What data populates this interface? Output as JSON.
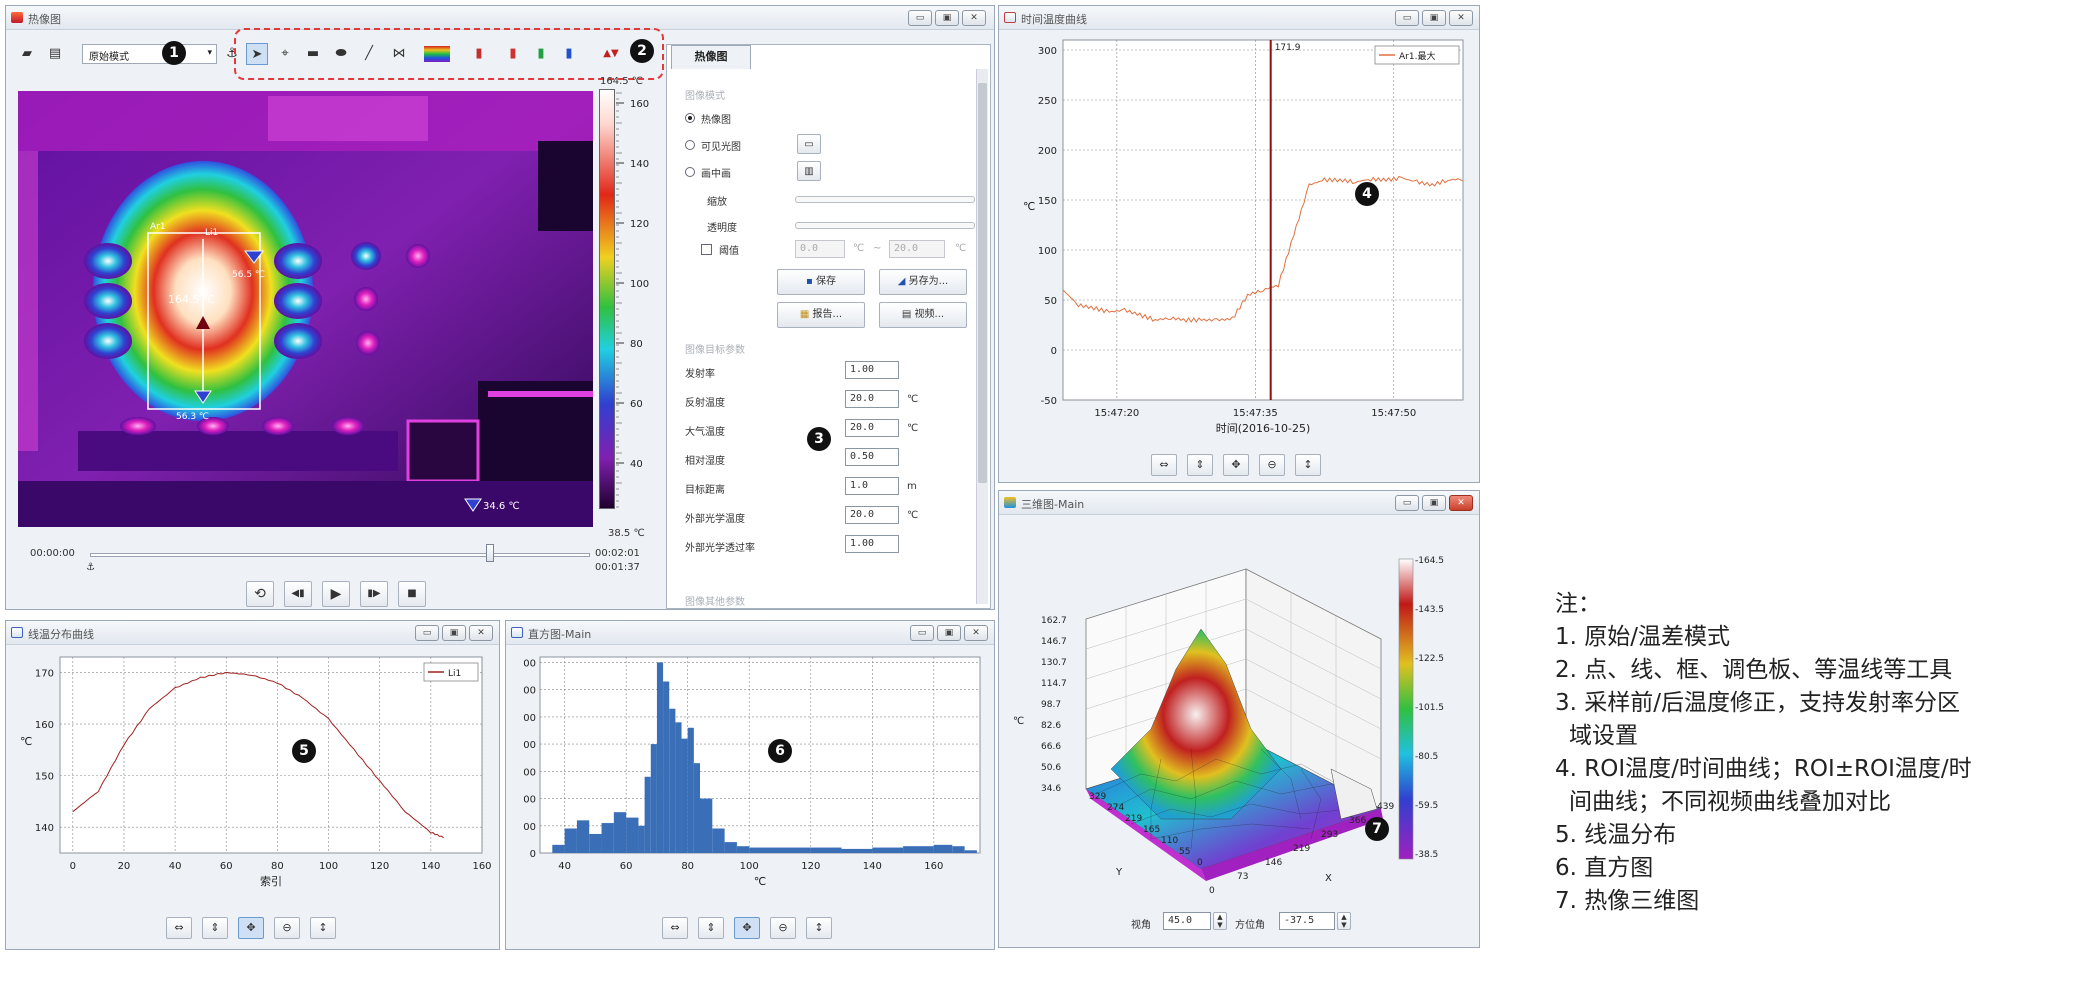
{
  "thermal": {
    "title": "热像图",
    "mode": "原始模式",
    "anchor_icon": "⚓",
    "colorbar_max": "164.5 ℃",
    "colorbar_min": "38.5 ℃",
    "colorbar_ticks": [
      "160",
      "140",
      "120",
      "100",
      "80",
      "60",
      "40"
    ],
    "roi_label": "Ar1",
    "line_label": "Li1",
    "center_temp": "164.5 ℃",
    "right_temp": "56.5 ℃",
    "bottom_temp": "56.3 ℃",
    "min_marker": "34.6 ℃",
    "time_start": "00:00:00",
    "time_end": "00:02:01",
    "time_current": "00:01:37",
    "playback_fraction": 0.8
  },
  "badges": {
    "b1": "1",
    "b2": "2",
    "b3": "3",
    "b4": "4",
    "b5": "5",
    "b6": "6",
    "b7": "7"
  },
  "settings": {
    "tab": "热像图",
    "section_image_mode": "图像模式",
    "radio_thermal": "热像图",
    "radio_visible": "可见光图",
    "radio_pip": "画中画",
    "zoom_label": "缩放",
    "opacity_label": "透明度",
    "threshold_label": "阈值",
    "threshold_min": "0.0",
    "threshold_max": "20.0",
    "unit_c": "℃",
    "dash": "~",
    "save": "保存",
    "save_as": "另存为...",
    "report": "报告...",
    "video": "视频...",
    "section_target_params": "图像目标参数",
    "params": [
      {
        "label": "发射率",
        "value": "1.00",
        "unit": ""
      },
      {
        "label": "反射温度",
        "value": "20.0",
        "unit": "℃"
      },
      {
        "label": "大气温度",
        "value": "20.0",
        "unit": "℃"
      },
      {
        "label": "相对湿度",
        "value": "0.50",
        "unit": ""
      },
      {
        "label": "目标距离",
        "value": "1.0",
        "unit": "m"
      },
      {
        "label": "外部光学温度",
        "value": "20.0",
        "unit": "℃"
      },
      {
        "label": "外部光学透过率",
        "value": "1.00",
        "unit": ""
      }
    ],
    "section_other_params": "图像其他参数"
  },
  "time_curve": {
    "title": "时间温度曲线",
    "cursor_value": "171.9",
    "legend": "Ar1.最大",
    "chart_data": {
      "type": "line",
      "xlabel": "时间(2016-10-25)",
      "ylabel": "℃",
      "x_ticks": [
        "15:47:20",
        "15:47:35",
        "15:47:50"
      ],
      "y_ticks": [
        300,
        250,
        200,
        150,
        100,
        50,
        0,
        -50
      ],
      "ylim": [
        -50,
        310
      ],
      "series": [
        {
          "name": "Ar1.最大",
          "x": [
            0,
            2,
            4,
            6,
            8,
            10,
            12,
            14,
            16,
            18,
            20,
            22,
            24,
            26,
            28,
            30,
            32,
            34,
            36,
            38,
            40,
            42,
            44,
            46,
            48,
            50,
            52
          ],
          "values": [
            60,
            45,
            42,
            38,
            40,
            35,
            30,
            32,
            30,
            30,
            30,
            31,
            55,
            60,
            65,
            115,
            165,
            170,
            170,
            168,
            171,
            170,
            172,
            168,
            165,
            170,
            171
          ]
        }
      ],
      "grid": true
    }
  },
  "three_d": {
    "title": "三维图-Main",
    "z_ticks": [
      "162.7",
      "146.7",
      "130.7",
      "114.7",
      "98.7",
      "82.6",
      "66.6",
      "50.6",
      "34.6"
    ],
    "z_label": "℃",
    "y_ticks": [
      "329",
      "274",
      "219",
      "165",
      "110",
      "55",
      "0"
    ],
    "x_ticks": [
      "0",
      "73",
      "146",
      "219",
      "293",
      "366",
      "439"
    ],
    "y_label": "Y",
    "x_label": "X",
    "colorbar_ticks": [
      "-164.5",
      "-143.5",
      "-122.5",
      "-101.5",
      "-80.5",
      "-59.5",
      "-38.5"
    ],
    "view_angle_label": "视角",
    "view_angle": "45.0",
    "azimuth_label": "方位角",
    "azimuth": "-37.5"
  },
  "line_dist": {
    "title": "线温分布曲线",
    "legend": "Li1",
    "chart_data": {
      "type": "line",
      "xlabel": "索引",
      "ylabel": "℃",
      "x_ticks": [
        0,
        20,
        40,
        60,
        80,
        100,
        120,
        140,
        160
      ],
      "y_ticks": [
        170,
        160,
        150,
        140
      ],
      "xlim": [
        -5,
        160
      ],
      "ylim": [
        135,
        173
      ],
      "series": [
        {
          "name": "Li1",
          "x": [
            0,
            10,
            20,
            30,
            40,
            50,
            60,
            70,
            80,
            90,
            100,
            110,
            120,
            130,
            140,
            145
          ],
          "values": [
            143,
            147,
            156,
            163,
            167,
            169,
            170,
            169.5,
            168,
            165,
            161,
            155,
            149,
            143,
            139,
            138
          ]
        }
      ],
      "grid": true
    }
  },
  "histogram": {
    "title": "直方图-Main",
    "chart_data": {
      "type": "bar",
      "xlabel": "℃",
      "x_ticks": [
        40,
        60,
        80,
        100,
        120,
        140,
        160
      ],
      "y_tick_labels": [
        "00",
        "00",
        "00",
        "00",
        "00",
        "00",
        "00",
        "0"
      ],
      "xlim": [
        32,
        175
      ],
      "ylim": [
        0,
        7.2
      ],
      "bins": [
        36,
        40,
        44,
        48,
        52,
        56,
        60,
        64,
        66,
        68,
        70,
        72,
        74,
        76,
        78,
        80,
        82,
        84,
        88,
        92,
        96,
        100,
        110,
        120,
        130,
        140,
        150,
        160,
        166,
        170
      ],
      "values": [
        0.3,
        0.9,
        1.2,
        0.7,
        1.1,
        1.5,
        1.3,
        1.0,
        2.8,
        4.0,
        7.0,
        6.3,
        5.3,
        4.8,
        4.2,
        4.6,
        3.3,
        2.0,
        0.9,
        0.4,
        0.25,
        0.2,
        0.2,
        0.2,
        0.15,
        0.2,
        0.25,
        0.3,
        0.25,
        0.1
      ],
      "grid": true
    }
  },
  "notes": {
    "heading": "注：",
    "lines": [
      "1. 原始/温差模式",
      "2. 点、线、框、调色板、等温线等工具",
      "3. 采样前/后温度修正，支持发射率分区",
      "域设置",
      "4. ROI温度/时间曲线；ROI±ROI温度/时",
      "间曲线；不同视频曲线叠加对比",
      "5. 线温分布",
      "6. 直方图",
      "7. 热像三维图"
    ]
  }
}
